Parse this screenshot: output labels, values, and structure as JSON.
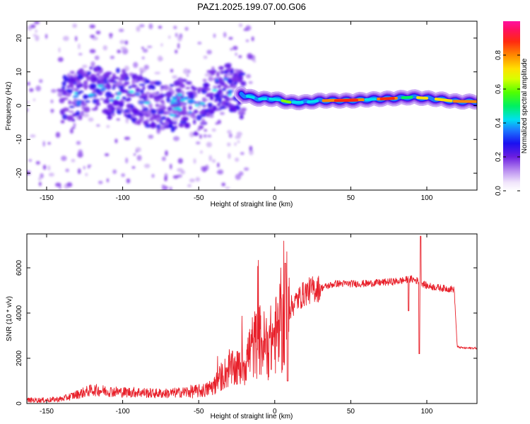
{
  "title": "PAZ1.2025.199.07.00.G06",
  "chart_data": [
    {
      "type": "heatmap",
      "xlabel": "Height of straight line (km)",
      "ylabel": "Frequency (Hz)",
      "xlim": [
        -163,
        133
      ],
      "ylim": [
        -25,
        25
      ],
      "xticks": [
        -150,
        -100,
        -50,
        0,
        50,
        100
      ],
      "yticks": [
        -20,
        -10,
        0,
        10,
        20
      ],
      "grid": false,
      "colorbar": {
        "label": "Normalized spectral amplitude",
        "range": [
          0,
          1
        ],
        "ticks": [
          0.0,
          0.2,
          0.4,
          0.6,
          0.8
        ],
        "colormap": "rainbow (white-violet-blue-cyan-green-yellow-orange-red-magenta)"
      },
      "ridge": {
        "description": "dominant spectral track",
        "x": [
          -135,
          -120,
          -110,
          -100,
          -90,
          -80,
          -70,
          -60,
          -50,
          -40,
          -30,
          -20,
          -10,
          0,
          10,
          20,
          30,
          40,
          50,
          60,
          70,
          80,
          90,
          100,
          110,
          120,
          133
        ],
        "y": [
          2,
          5,
          3,
          4,
          2,
          0,
          -1,
          1,
          -2,
          5,
          6,
          3,
          2,
          2,
          1,
          1,
          1.5,
          1.5,
          1.5,
          1.8,
          2,
          2.2,
          2.5,
          2.2,
          1.8,
          1.2,
          1.2
        ]
      }
    },
    {
      "type": "line",
      "xlabel": "Height of straight line (km)",
      "ylabel": "SNR (10 * v/v)",
      "xlim": [
        -163,
        133
      ],
      "ylim": [
        0,
        7500
      ],
      "xticks": [
        -150,
        -100,
        -50,
        0,
        50,
        100
      ],
      "yticks": [
        0,
        2000,
        4000,
        6000
      ],
      "grid": false,
      "color": "#e8202a",
      "series": [
        {
          "x": [
            -163,
            -150,
            -140,
            -130,
            -120,
            -110,
            -100,
            -90,
            -80,
            -70,
            -60,
            -50,
            -45,
            -40,
            -35,
            -30,
            -25,
            -20,
            -15,
            -10,
            -5,
            0,
            5,
            8,
            10,
            15,
            20,
            25,
            30,
            35,
            40,
            50,
            60,
            70,
            80,
            90,
            95,
            100,
            110,
            118,
            120,
            125,
            133
          ],
          "y": [
            150,
            150,
            200,
            400,
            600,
            550,
            500,
            500,
            450,
            450,
            500,
            550,
            600,
            800,
            1200,
            1500,
            1500,
            1800,
            2500,
            2800,
            2500,
            3000,
            3200,
            3800,
            4200,
            4600,
            4900,
            5050,
            5100,
            5200,
            5300,
            5300,
            5300,
            5350,
            5400,
            5500,
            5400,
            5200,
            5100,
            5050,
            2500,
            2450,
            2450
          ]
        }
      ]
    }
  ]
}
